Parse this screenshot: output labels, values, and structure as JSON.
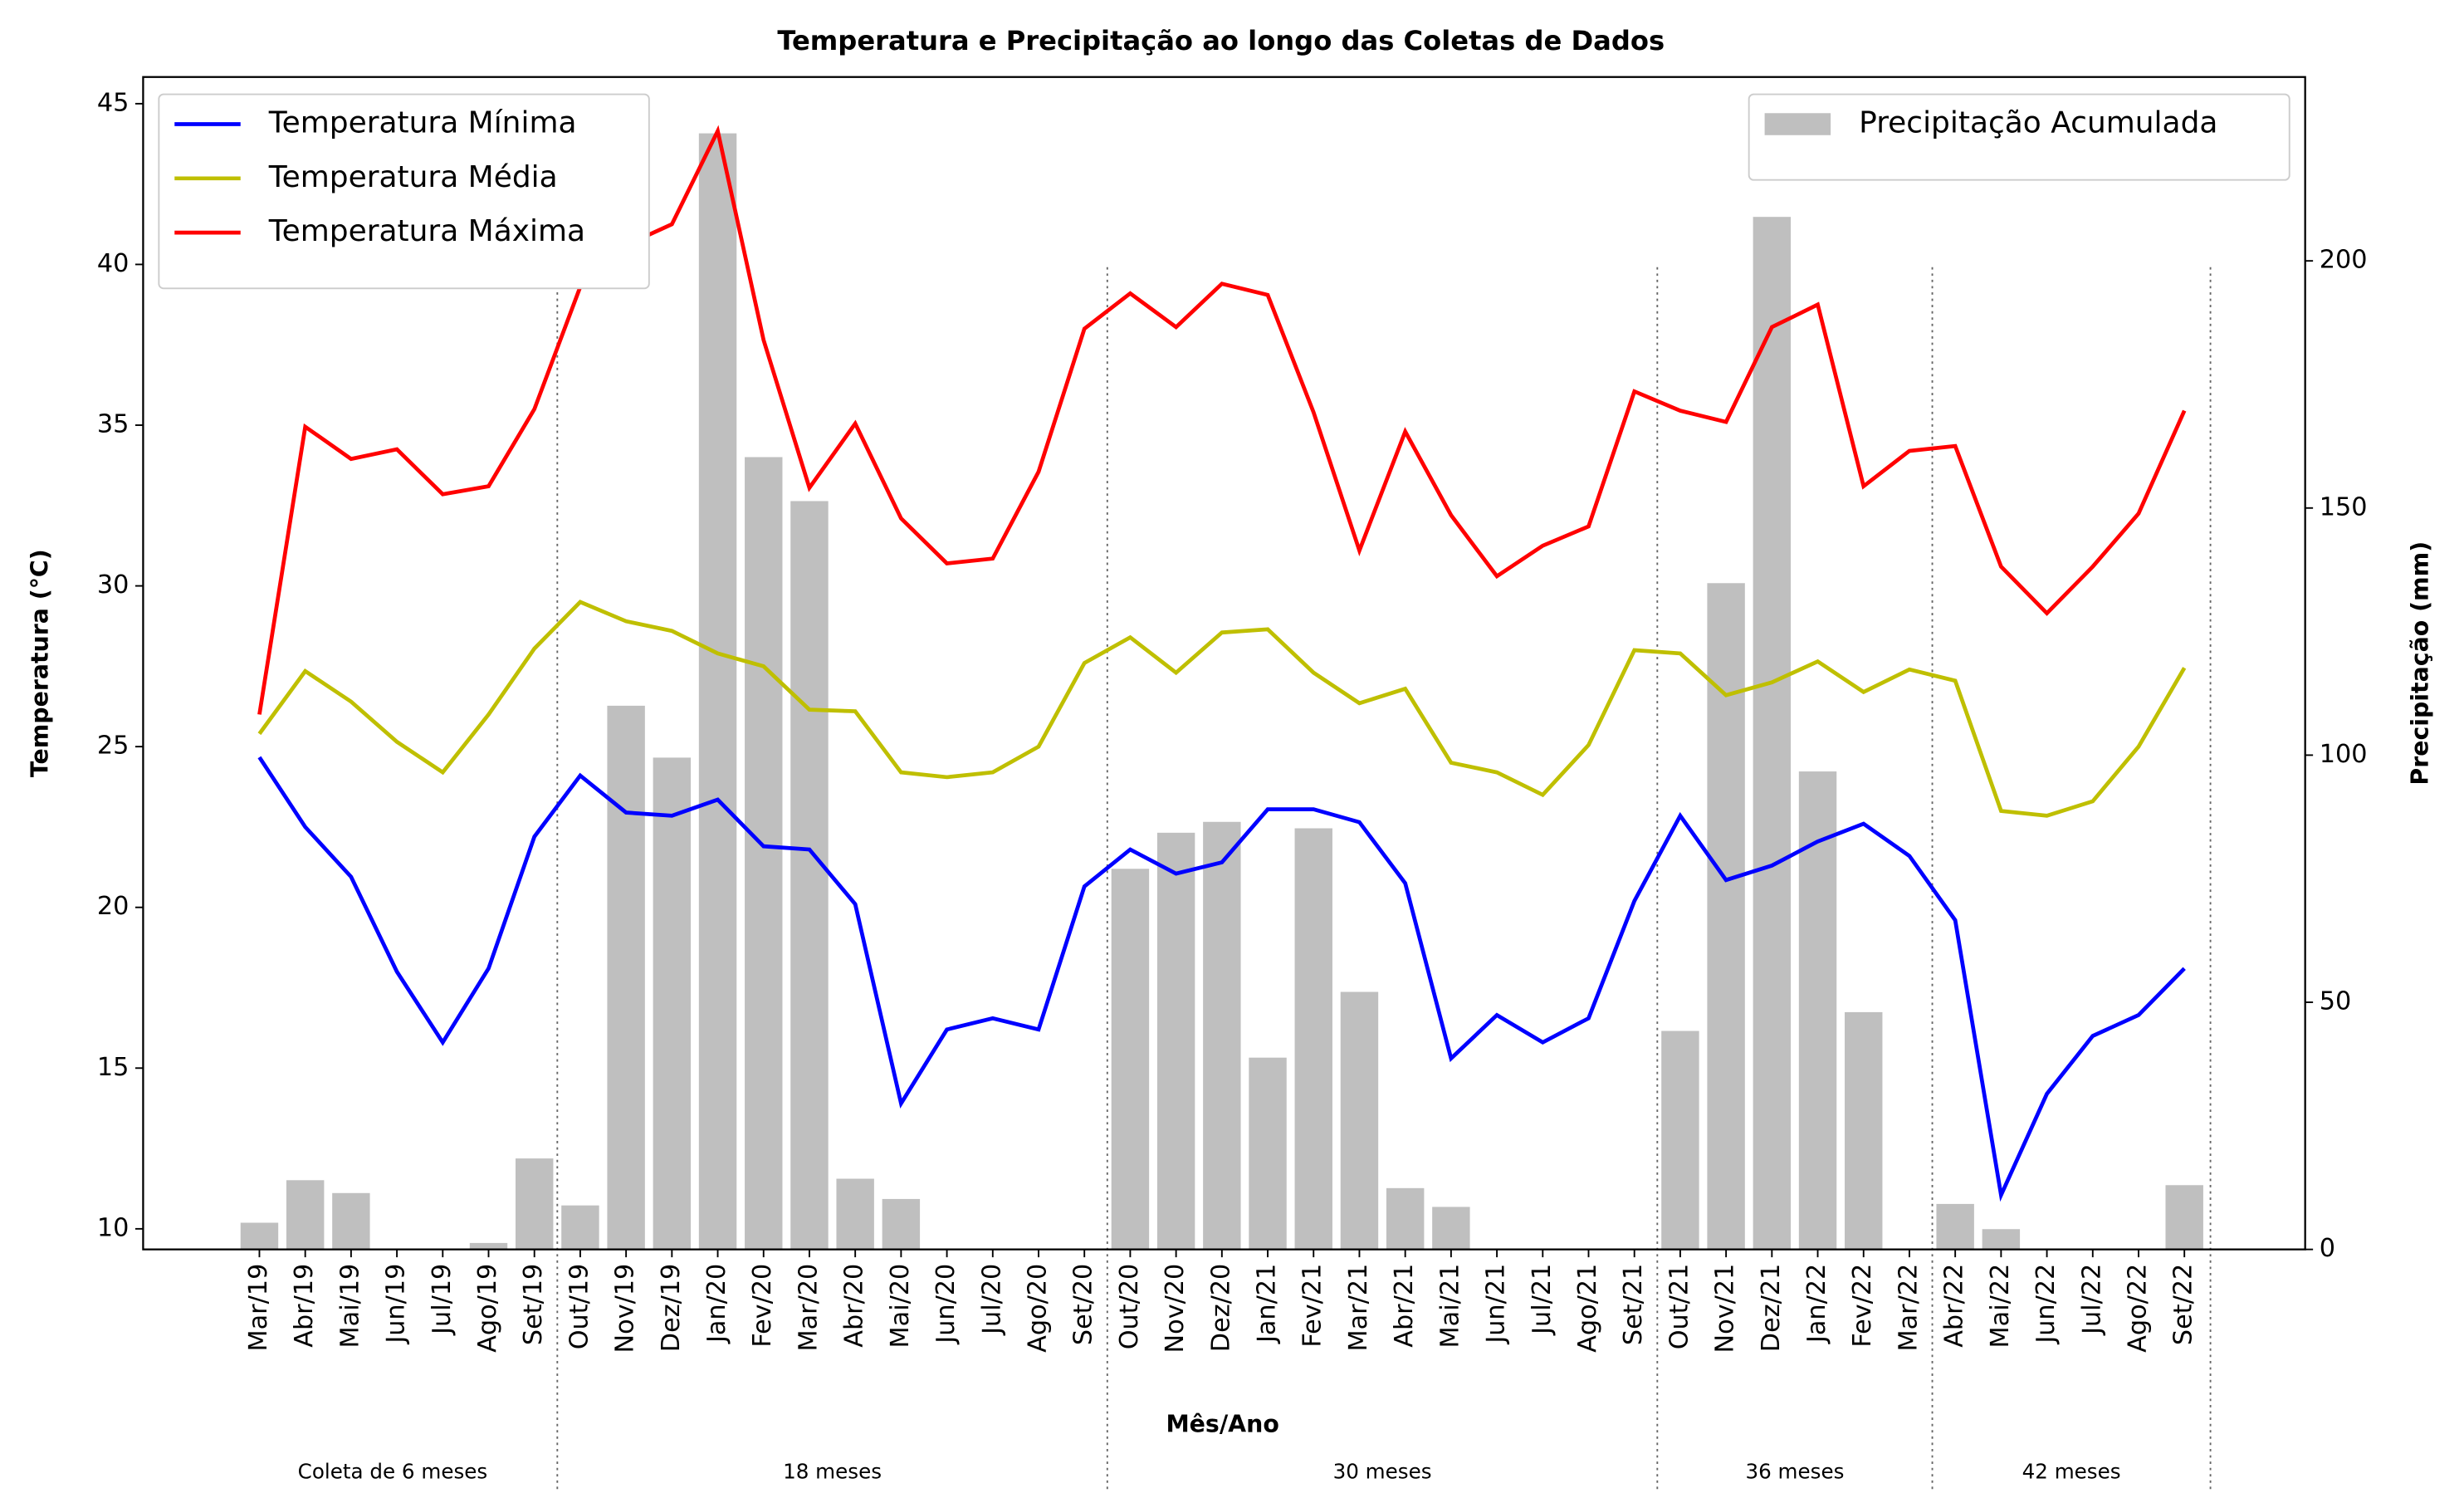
{
  "chart_data": {
    "type": "line",
    "title": "Temperatura e Precipitação ao longo das Coletas de Dados",
    "x_label": "Mês/Ano",
    "y_label": "Temperatura (°C)",
    "y2_label": "Precipitação (mm)",
    "categories": [
      "Mar/19",
      "Abr/19",
      "Mai/19",
      "Jun/19",
      "Jul/19",
      "Ago/19",
      "Set/19",
      "Out/19",
      "Nov/19",
      "Dez/19",
      "Jan/20",
      "Fev/20",
      "Mar/20",
      "Abr/20",
      "Mai/20",
      "Jun/20",
      "Jul/20",
      "Ago/20",
      "Set/20",
      "Out/20",
      "Nov/20",
      "Dez/20",
      "Jan/21",
      "Fev/21",
      "Mar/21",
      "Abr/21",
      "Mai/21",
      "Jun/21",
      "Jul/21",
      "Ago/21",
      "Set/21",
      "Out/21",
      "Nov/21",
      "Dez/21",
      "Jan/22",
      "Fev/22",
      "Mar/22",
      "Abr/22",
      "Mai/22",
      "Jun/22",
      "Jul/22",
      "Ago/22",
      "Set/22"
    ],
    "series": [
      {
        "name": "Temperatura Mínima",
        "color": "#0000ff",
        "values": [
          24.67,
          22.5,
          20.95,
          18,
          15.8,
          18.1,
          22.2,
          24.1,
          22.95,
          22.85,
          23.35,
          21.9,
          21.8,
          20.1,
          13.9,
          16.2,
          16.55,
          16.2,
          20.65,
          21.8,
          21.05,
          21.4,
          23.05,
          23.05,
          22.65,
          20.75,
          15.3,
          16.65,
          15.8,
          16.55,
          20.2,
          22.85,
          20.85,
          21.3,
          22.05,
          22.6,
          21.6,
          19.6,
          11.05,
          14.2,
          16.0,
          16.65,
          18.1
        ]
      },
      {
        "name": "Temperatura Média",
        "color": "#bfbf00",
        "values": [
          25.4,
          27.35,
          26.4,
          25.15,
          24.2,
          26,
          28.05,
          29.5,
          28.9,
          28.6,
          27.9,
          27.5,
          26.15,
          26.1,
          24.2,
          24.05,
          24.2,
          25.0,
          27.6,
          28.4,
          27.3,
          28.55,
          28.65,
          27.3,
          26.35,
          26.8,
          24.5,
          24.2,
          23.5,
          25.05,
          28.0,
          27.9,
          26.6,
          27.0,
          27.65,
          26.7,
          27.4,
          27.05,
          23.0,
          22.85,
          23.3,
          25.0,
          27.45
        ]
      },
      {
        "name": "Temperatura Máxima",
        "color": "#ff0000",
        "values": [
          26.0,
          34.95,
          33.95,
          34.25,
          32.85,
          33.1,
          35.5,
          39.3,
          40.6,
          41.25,
          44.15,
          37.65,
          33.05,
          35.05,
          32.1,
          30.7,
          30.85,
          33.55,
          38.0,
          39.1,
          38.05,
          39.4,
          39.05,
          35.4,
          31.1,
          34.8,
          32.2,
          30.3,
          31.25,
          31.85,
          36.05,
          35.45,
          35.1,
          38.05,
          38.75,
          33.1,
          34.2,
          34.35,
          30.6,
          29.15,
          30.6,
          32.25,
          35.45
        ]
      },
      {
        "name": "Precipitação Acumulada",
        "color": "#bfbfbf",
        "type": "bar",
        "axis": "y2",
        "values": [
          5.4,
          14,
          11.4,
          0,
          0,
          1.3,
          18.4,
          8.9,
          110,
          99.5,
          225.8,
          160.3,
          151.4,
          14.3,
          10.2,
          0,
          0,
          0,
          0,
          77,
          84.3,
          86.5,
          38.8,
          85.2,
          52.1,
          12.4,
          8.6,
          0,
          0,
          0,
          0,
          44.2,
          134.8,
          208.9,
          96.7,
          48,
          0,
          9.2,
          4.1,
          0,
          0,
          0,
          13
        ]
      }
    ],
    "ylim": [
      9.36,
      45.83
    ],
    "yticks": [
      10,
      15,
      20,
      25,
      30,
      35,
      40,
      45
    ],
    "y2lim": [
      0,
      237.2
    ],
    "y2ticks": [
      0,
      50,
      100,
      150,
      200
    ],
    "legend": "upper left",
    "legend2": "upper right",
    "grid": false,
    "groups": [
      "Coleta de 6 meses",
      "18 meses",
      "30 meses",
      "36 meses",
      "42 meses"
    ]
  }
}
